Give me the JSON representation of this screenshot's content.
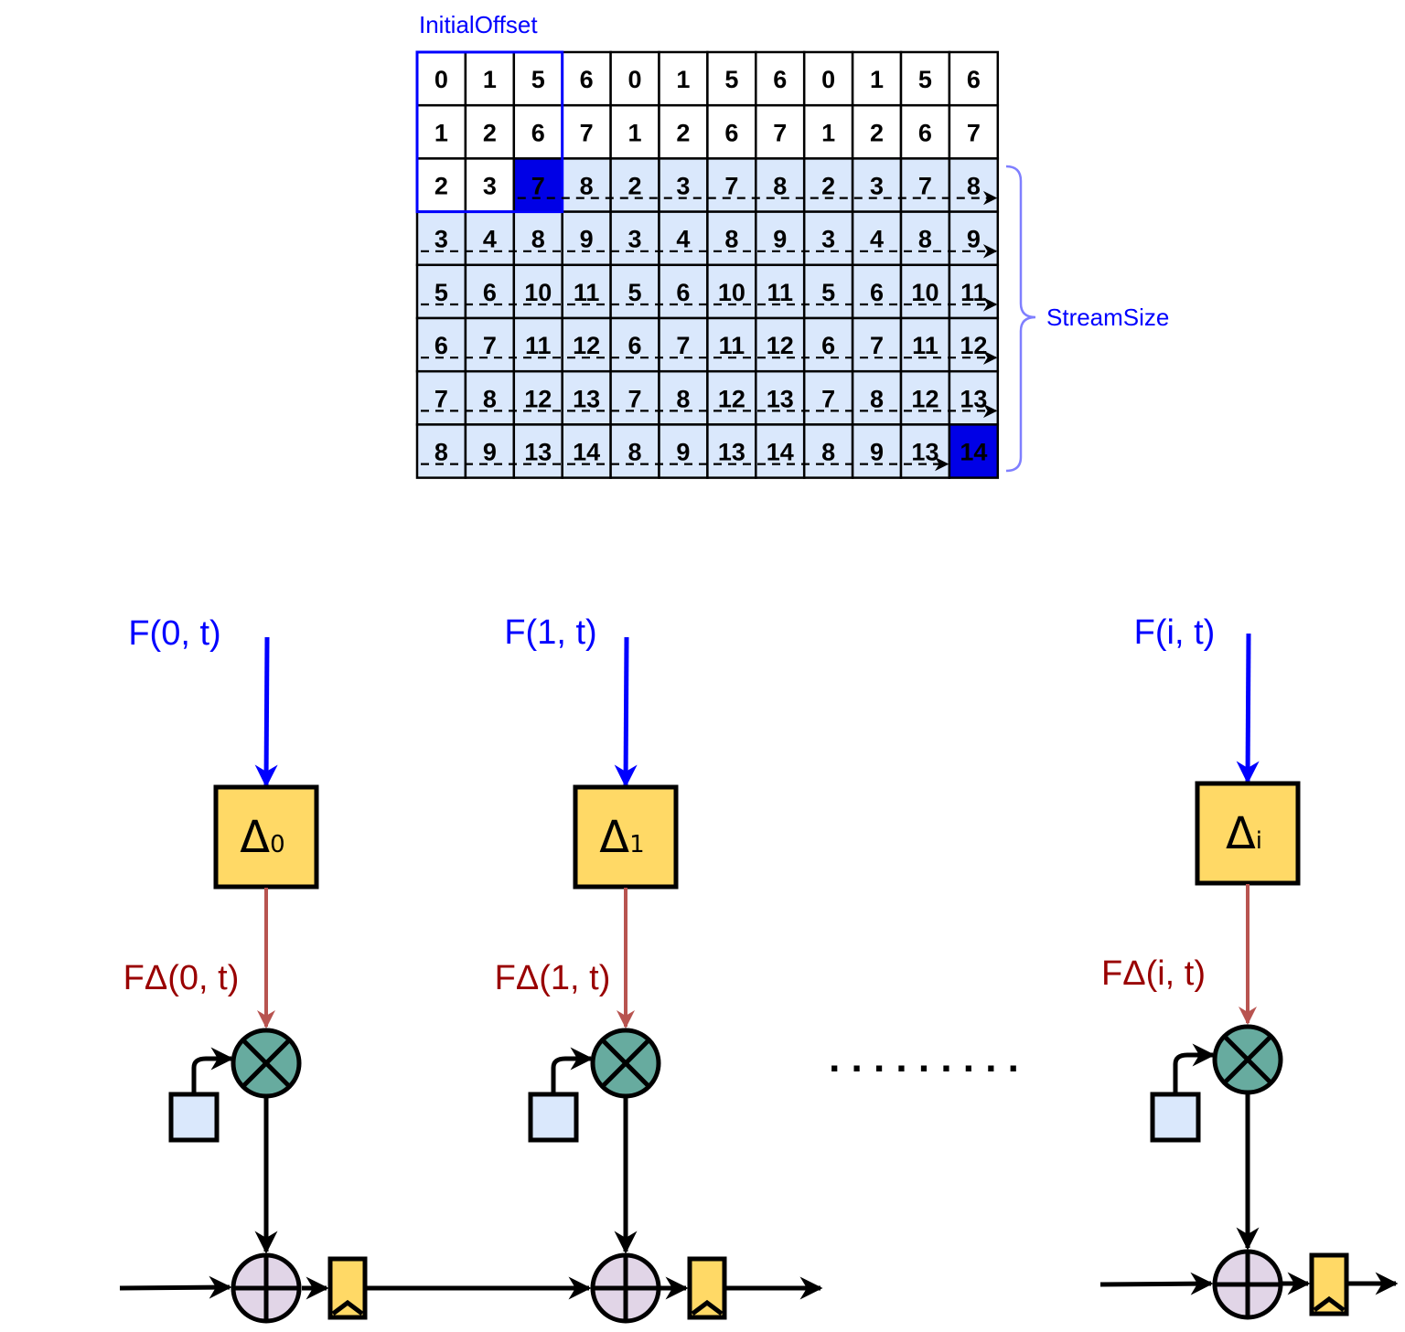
{
  "grid": {
    "initial_offset_label": "InitialOffset",
    "stream_size_label": "StreamSize",
    "rows": [
      [
        "0",
        "1",
        "5",
        "6",
        "0",
        "1",
        "5",
        "6",
        "0",
        "1",
        "5",
        "6"
      ],
      [
        "1",
        "2",
        "6",
        "7",
        "1",
        "2",
        "6",
        "7",
        "1",
        "2",
        "6",
        "7"
      ],
      [
        "2",
        "3",
        "7",
        "8",
        "2",
        "3",
        "7",
        "8",
        "2",
        "3",
        "7",
        "8"
      ],
      [
        "3",
        "4",
        "8",
        "9",
        "3",
        "4",
        "8",
        "9",
        "3",
        "4",
        "8",
        "9"
      ],
      [
        "5",
        "6",
        "10",
        "11",
        "5",
        "6",
        "10",
        "11",
        "5",
        "6",
        "10",
        "11"
      ],
      [
        "6",
        "7",
        "11",
        "12",
        "6",
        "7",
        "11",
        "12",
        "6",
        "7",
        "11",
        "12"
      ],
      [
        "7",
        "8",
        "12",
        "13",
        "7",
        "8",
        "12",
        "13",
        "7",
        "8",
        "12",
        "13"
      ],
      [
        "8",
        "9",
        "13",
        "14",
        "8",
        "9",
        "13",
        "14",
        "8",
        "9",
        "13",
        "14"
      ]
    ],
    "colors": {
      "stream_fill": "#dae8fc",
      "highlight_fill": "#0000e6",
      "offset_border": "#0000ff",
      "brace": "#7f7fff"
    }
  },
  "units": [
    {
      "input_label": "F(0, t)",
      "delta_symbol": "Δ",
      "delta_sub": "0",
      "output_label": "FΔ(0, t)"
    },
    {
      "input_label": "F(1, t)",
      "delta_symbol": "Δ",
      "delta_sub": "1",
      "output_label": "FΔ(1, t)"
    },
    {
      "input_label": "F(i, t)",
      "delta_symbol": "Δ",
      "delta_sub": "i",
      "output_label": "FΔ(i, t)"
    }
  ],
  "ellipsis": ". . . . . . . . .",
  "colors": {
    "input_arrow": "#0000ff",
    "output_arrow": "#b85450",
    "delta_box": "#ffd966",
    "multiply_node": "#67ab9f",
    "add_node": "#e1d5e7",
    "const_box": "#dae8fc",
    "register": "#ffd966"
  }
}
